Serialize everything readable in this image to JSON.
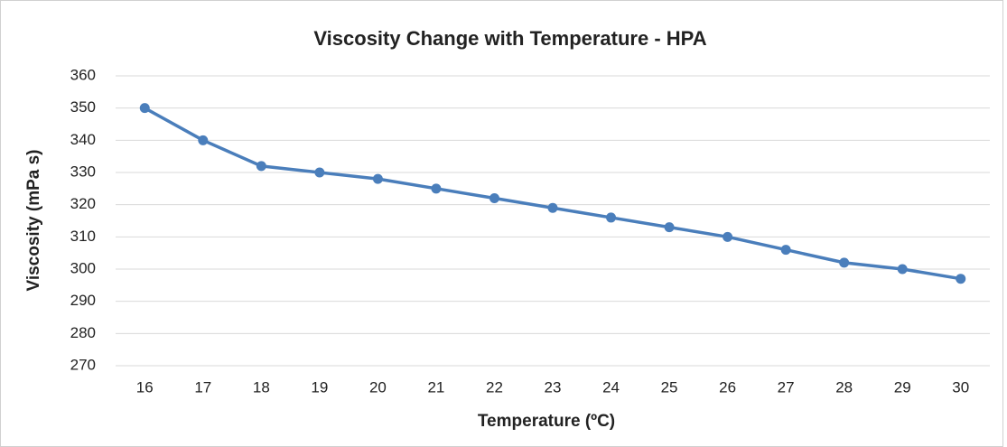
{
  "chart_data": {
    "type": "line",
    "title": "Viscosity Change with Temperature - HPA",
    "x_label": "Temperature (ºC)",
    "y_label": "Viscosity (mPa s)",
    "categories": [
      "16",
      "17",
      "18",
      "19",
      "20",
      "21",
      "22",
      "23",
      "24",
      "25",
      "26",
      "27",
      "28",
      "29",
      "30"
    ],
    "series": [
      {
        "name": "HPA",
        "color": "#4a7ebb",
        "values": [
          350,
          340,
          332,
          330,
          328,
          325,
          322,
          319,
          316,
          313,
          310,
          306,
          302,
          300,
          297
        ]
      }
    ],
    "ylim": [
      270,
      360
    ],
    "yticks": [
      270,
      280,
      290,
      300,
      310,
      320,
      330,
      340,
      350,
      360
    ],
    "grid": true
  }
}
